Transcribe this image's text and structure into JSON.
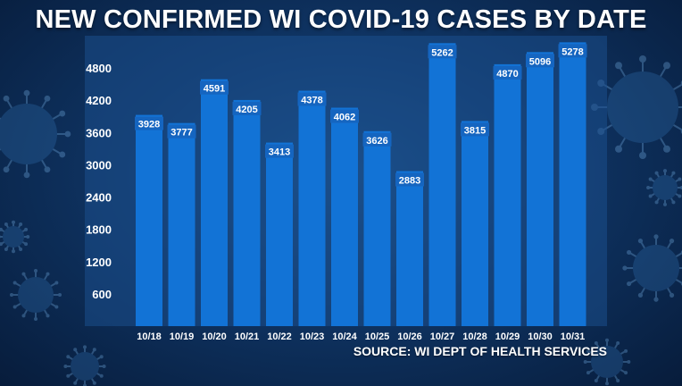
{
  "title": "NEW CONFIRMED WI COVID-19 CASES BY DATE",
  "source": "SOURCE: WI DEPT OF HEALTH SERVICES",
  "colors": {
    "bar": "#1273d6",
    "plot_bg": "#1c4f8c",
    "label_bg": "#1565c0",
    "text": "#ffffff"
  },
  "chart_data": {
    "type": "bar",
    "title": "NEW CONFIRMED WI COVID-19 CASES BY DATE",
    "categories": [
      "10/18",
      "10/19",
      "10/20",
      "10/21",
      "10/22",
      "10/23",
      "10/24",
      "10/25",
      "10/26",
      "10/27",
      "10/28",
      "10/29",
      "10/30",
      "10/31"
    ],
    "values": [
      3928,
      3777,
      4591,
      4205,
      3413,
      4378,
      4062,
      3626,
      2883,
      5262,
      3815,
      4870,
      5096,
      5278
    ],
    "yticks": [
      600,
      1200,
      1800,
      2400,
      3000,
      3600,
      4200,
      4800
    ],
    "ylim": [
      0,
      5400
    ],
    "grid": false,
    "data_labels": true
  }
}
